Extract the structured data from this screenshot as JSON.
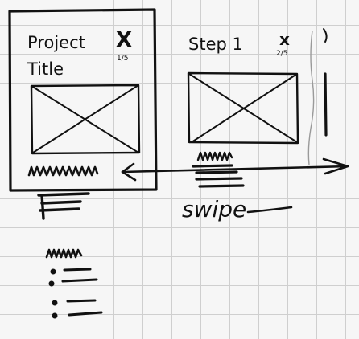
{
  "card1": {
    "title_line1": "Project",
    "title_line2": "Title",
    "close_glyph": "X",
    "progress": "1/5"
  },
  "card2": {
    "title": "Step 1",
    "close_glyph": "x",
    "progress": "2/5"
  },
  "swipe_label": "swipe",
  "ink_color": "#111111"
}
